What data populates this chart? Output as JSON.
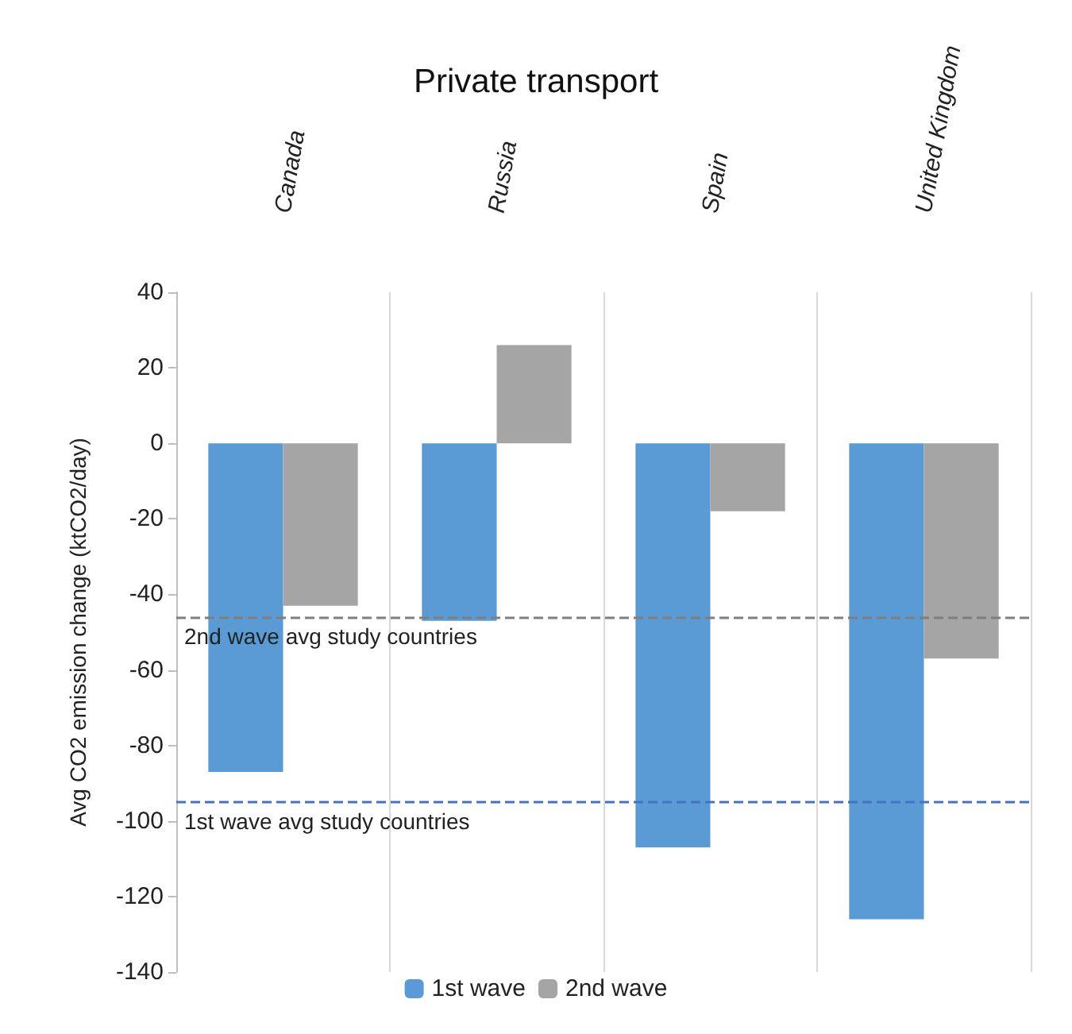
{
  "chart_data": {
    "type": "bar",
    "title": "Private transport",
    "ylabel": "Avg CO2 emission change (ktCO2/day)",
    "categories": [
      "Canada",
      "Russia",
      "Spain",
      "United Kingdom"
    ],
    "series": [
      {
        "name": "1st wave",
        "color": "#5b9bd5",
        "values": [
          -87,
          -47,
          -107,
          -126
        ]
      },
      {
        "name": "2nd wave",
        "color": "#a5a5a5",
        "values": [
          -43,
          26,
          -18,
          -57
        ]
      }
    ],
    "ylim": [
      -140,
      40
    ],
    "yticks": [
      -140,
      -120,
      -100,
      -80,
      -60,
      -40,
      -20,
      0,
      20,
      40
    ],
    "grid": "x",
    "legend": "bottom",
    "ref_lines": [
      {
        "axis": "y",
        "value": -46,
        "label": "2nd wave avg study countries",
        "color": "#7f7f7f",
        "line_style": "dashed"
      },
      {
        "axis": "y",
        "value": -95,
        "label": "1st wave avg study countries",
        "color": "#4472c4",
        "line_style": "dashed"
      }
    ]
  }
}
